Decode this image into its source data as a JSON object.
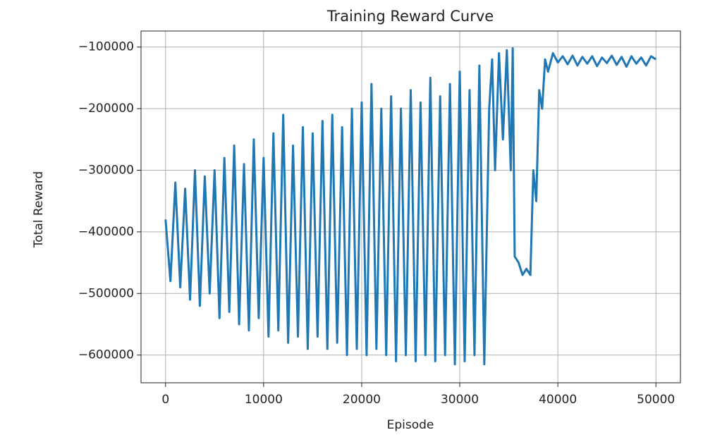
{
  "chart_data": {
    "type": "line",
    "title": "Training Reward Curve",
    "xlabel": "Episode",
    "ylabel": "Total Reward",
    "x": [
      0,
      500,
      1000,
      1500,
      2000,
      2500,
      3000,
      3500,
      4000,
      4500,
      5000,
      5500,
      6000,
      6500,
      7000,
      7500,
      8000,
      8500,
      9000,
      9500,
      10000,
      10500,
      11000,
      11500,
      12000,
      12500,
      13000,
      13500,
      14000,
      14500,
      15000,
      15500,
      16000,
      16500,
      17000,
      17500,
      18000,
      18500,
      19000,
      19500,
      20000,
      20500,
      21000,
      21500,
      22000,
      22500,
      23000,
      23500,
      24000,
      24500,
      25000,
      25500,
      26000,
      26500,
      27000,
      27500,
      28000,
      28500,
      29000,
      29500,
      30000,
      30500,
      31000,
      31500,
      32000,
      32500,
      33000,
      33300,
      33600,
      34000,
      34400,
      34800,
      35200,
      35400,
      35600,
      36000,
      36400,
      36800,
      37200,
      37500,
      37800,
      38100,
      38400,
      38700,
      39000,
      39500,
      40000,
      40500,
      41000,
      41500,
      42000,
      42500,
      43000,
      43500,
      44000,
      44500,
      45000,
      45500,
      46000,
      46500,
      47000,
      47500,
      48000,
      48500,
      49000,
      49500,
      50000
    ],
    "series": [
      {
        "name": "Total Reward",
        "color": "#1f77b4",
        "values": [
          -380000,
          -480000,
          -320000,
          -490000,
          -330000,
          -510000,
          -300000,
          -520000,
          -310000,
          -500000,
          -300000,
          -540000,
          -280000,
          -530000,
          -260000,
          -550000,
          -290000,
          -560000,
          -250000,
          -540000,
          -280000,
          -570000,
          -240000,
          -560000,
          -210000,
          -580000,
          -260000,
          -570000,
          -230000,
          -590000,
          -240000,
          -570000,
          -220000,
          -590000,
          -210000,
          -580000,
          -230000,
          -600000,
          -200000,
          -590000,
          -190000,
          -600000,
          -160000,
          -590000,
          -200000,
          -600000,
          -180000,
          -610000,
          -200000,
          -600000,
          -170000,
          -610000,
          -190000,
          -600000,
          -150000,
          -610000,
          -180000,
          -600000,
          -160000,
          -615000,
          -140000,
          -610000,
          -170000,
          -600000,
          -130000,
          -615000,
          -200000,
          -120000,
          -300000,
          -110000,
          -250000,
          -105000,
          -300000,
          -102000,
          -440000,
          -450000,
          -470000,
          -460000,
          -470000,
          -300000,
          -350000,
          -170000,
          -200000,
          -120000,
          -140000,
          -110000,
          -125000,
          -115000,
          -128000,
          -114000,
          -130000,
          -116000,
          -127000,
          -115000,
          -131000,
          -117000,
          -126000,
          -114000,
          -129000,
          -116000,
          -132000,
          -115000,
          -127000,
          -117000,
          -130000,
          -115000,
          -120000
        ]
      }
    ],
    "xlim": [
      -2500,
      52500
    ],
    "ylim": [
      -645000,
      -74000
    ],
    "xticks": [
      0,
      10000,
      20000,
      30000,
      40000,
      50000
    ],
    "yticks": [
      {
        "value": -600000,
        "label": "−600000"
      },
      {
        "value": -500000,
        "label": "−500000"
      },
      {
        "value": -400000,
        "label": "−400000"
      },
      {
        "value": -300000,
        "label": "−300000"
      },
      {
        "value": -200000,
        "label": "−200000"
      },
      {
        "value": -100000,
        "label": "−100000"
      }
    ],
    "grid": true
  }
}
